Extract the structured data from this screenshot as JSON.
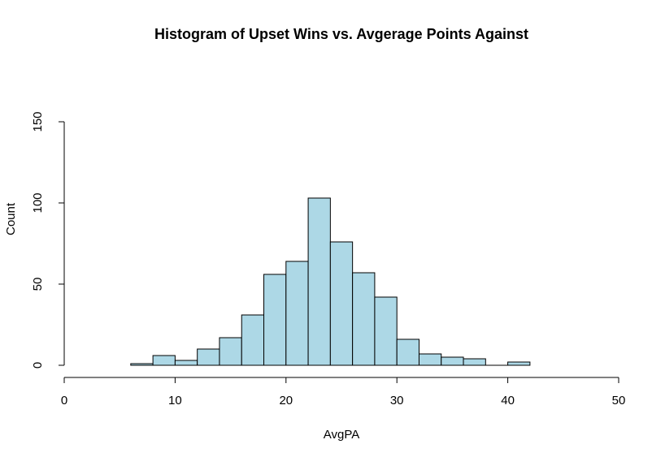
{
  "chart_data": {
    "type": "bar",
    "subtype": "histogram",
    "title": "Histogram of Upset Wins vs. Avgerage Points Against",
    "xlabel": "AvgPA",
    "ylabel": "Count",
    "bins": [
      {
        "start": 6,
        "end": 8,
        "count": 1
      },
      {
        "start": 8,
        "end": 10,
        "count": 6
      },
      {
        "start": 10,
        "end": 12,
        "count": 3
      },
      {
        "start": 12,
        "end": 14,
        "count": 10
      },
      {
        "start": 14,
        "end": 16,
        "count": 17
      },
      {
        "start": 16,
        "end": 18,
        "count": 31
      },
      {
        "start": 18,
        "end": 20,
        "count": 56
      },
      {
        "start": 20,
        "end": 22,
        "count": 64
      },
      {
        "start": 22,
        "end": 24,
        "count": 103
      },
      {
        "start": 24,
        "end": 26,
        "count": 76
      },
      {
        "start": 26,
        "end": 28,
        "count": 57
      },
      {
        "start": 28,
        "end": 30,
        "count": 42
      },
      {
        "start": 30,
        "end": 32,
        "count": 16
      },
      {
        "start": 32,
        "end": 34,
        "count": 7
      },
      {
        "start": 34,
        "end": 36,
        "count": 5
      },
      {
        "start": 36,
        "end": 38,
        "count": 4
      },
      {
        "start": 38,
        "end": 40,
        "count": 0
      },
      {
        "start": 40,
        "end": 42,
        "count": 2
      }
    ],
    "xlim": [
      0,
      50
    ],
    "ylim": [
      0,
      150
    ],
    "xticks": [
      "0",
      "10",
      "20",
      "30",
      "40",
      "50"
    ],
    "yticks": [
      "0",
      "50",
      "100",
      "150"
    ],
    "bar_color": "#add8e6",
    "grid": false,
    "legend": "none"
  }
}
